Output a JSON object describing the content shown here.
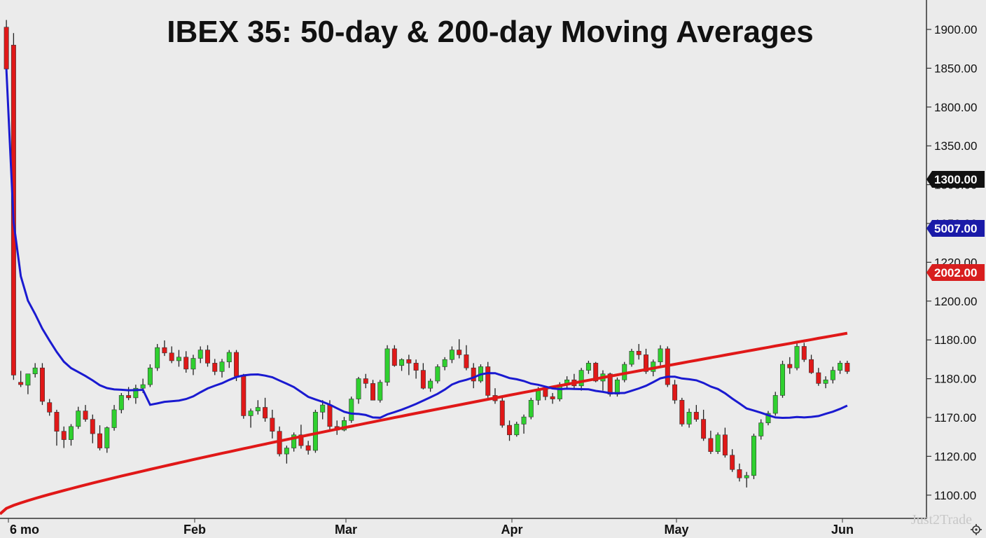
{
  "chart_data": {
    "type": "candlestick",
    "title": "IBEX 35: 50-day & 200-day Moving Averages",
    "y_ticks": [
      "1900.00",
      "1850.00",
      "1800.00",
      "1350.00",
      "1300.00",
      "1250.00",
      "1220.00",
      "1200.00",
      "1180.00",
      "1180.00",
      "1170.00",
      "1120.00",
      "1100.00"
    ],
    "x_labels": [
      "6 mo",
      "Feb",
      "Mar",
      "Apr",
      "May",
      "Jun"
    ],
    "price_tags": [
      {
        "text": "1300.00",
        "bg": "#111111",
        "fg": "#ffffff",
        "level": 1300
      },
      {
        "text": "5007.00",
        "bg": "#1a1aa8",
        "fg": "#ffffff",
        "level": 1256
      },
      {
        "text": "2002.00",
        "bg": "#d81e1e",
        "fg": "#ffffff",
        "level": 1225
      }
    ],
    "series": [
      {
        "name": "50-day MA",
        "color": "#1a1ad0"
      },
      {
        "name": "200-day MA",
        "color": "#e01818"
      }
    ],
    "up_color": "#2fd02f",
    "down_color": "#e01818",
    "candle_ohlc": [
      [
        1880,
        1892,
        1815,
        1810
      ],
      [
        1850,
        1870,
        1290,
        1298
      ],
      [
        1286,
        1305,
        1278,
        1282
      ],
      [
        1281,
        1300,
        1266,
        1300
      ],
      [
        1300,
        1318,
        1294,
        1310
      ],
      [
        1310,
        1318,
        1248,
        1254
      ],
      [
        1252,
        1258,
        1230,
        1236
      ],
      [
        1236,
        1240,
        1180,
        1204
      ],
      [
        1204,
        1212,
        1176,
        1190
      ],
      [
        1190,
        1216,
        1180,
        1212
      ],
      [
        1212,
        1245,
        1208,
        1238
      ],
      [
        1238,
        1248,
        1220,
        1224
      ],
      [
        1224,
        1232,
        1184,
        1200
      ],
      [
        1200,
        1214,
        1172,
        1176
      ],
      [
        1176,
        1212,
        1168,
        1210
      ],
      [
        1210,
        1248,
        1205,
        1240
      ],
      [
        1240,
        1268,
        1234,
        1264
      ],
      [
        1264,
        1278,
        1256,
        1260
      ],
      [
        1260,
        1282,
        1250,
        1276
      ],
      [
        1276,
        1292,
        1268,
        1282
      ],
      [
        1282,
        1316,
        1278,
        1310
      ],
      [
        1310,
        1350,
        1305,
        1344
      ],
      [
        1344,
        1356,
        1330,
        1335
      ],
      [
        1335,
        1346,
        1318,
        1322
      ],
      [
        1322,
        1340,
        1312,
        1328
      ],
      [
        1328,
        1338,
        1302,
        1308
      ],
      [
        1308,
        1332,
        1298,
        1326
      ],
      [
        1326,
        1346,
        1318,
        1340
      ],
      [
        1340,
        1348,
        1312,
        1318
      ],
      [
        1318,
        1325,
        1298,
        1304
      ],
      [
        1304,
        1325,
        1294,
        1320
      ],
      [
        1320,
        1340,
        1310,
        1336
      ],
      [
        1336,
        1340,
        1288,
        1296
      ],
      [
        1296,
        1300,
        1225,
        1230
      ],
      [
        1230,
        1242,
        1210,
        1238
      ],
      [
        1238,
        1256,
        1232,
        1244
      ],
      [
        1244,
        1260,
        1220,
        1226
      ],
      [
        1226,
        1240,
        1192,
        1204
      ],
      [
        1204,
        1212,
        1162,
        1166
      ],
      [
        1166,
        1180,
        1150,
        1176
      ],
      [
        1176,
        1202,
        1170,
        1198
      ],
      [
        1198,
        1215,
        1175,
        1180
      ],
      [
        1180,
        1188,
        1165,
        1172
      ],
      [
        1172,
        1240,
        1168,
        1236
      ],
      [
        1236,
        1256,
        1224,
        1248
      ],
      [
        1248,
        1256,
        1206,
        1212
      ],
      [
        1212,
        1222,
        1198,
        1206
      ],
      [
        1206,
        1228,
        1204,
        1222
      ],
      [
        1222,
        1262,
        1218,
        1258
      ],
      [
        1258,
        1295,
        1250,
        1292
      ],
      [
        1292,
        1300,
        1276,
        1284
      ],
      [
        1284,
        1290,
        1256,
        1256
      ],
      [
        1256,
        1290,
        1252,
        1286
      ],
      [
        1286,
        1348,
        1280,
        1342
      ],
      [
        1342,
        1348,
        1312,
        1314
      ],
      [
        1314,
        1326,
        1305,
        1324
      ],
      [
        1324,
        1332,
        1298,
        1318
      ],
      [
        1318,
        1324,
        1292,
        1306
      ],
      [
        1306,
        1318,
        1274,
        1276
      ],
      [
        1276,
        1292,
        1270,
        1288
      ],
      [
        1288,
        1316,
        1284,
        1312
      ],
      [
        1312,
        1328,
        1306,
        1324
      ],
      [
        1324,
        1346,
        1318,
        1340
      ],
      [
        1340,
        1358,
        1326,
        1332
      ],
      [
        1332,
        1348,
        1306,
        1310
      ],
      [
        1310,
        1318,
        1276,
        1288
      ],
      [
        1288,
        1316,
        1285,
        1312
      ],
      [
        1312,
        1320,
        1260,
        1264
      ],
      [
        1264,
        1276,
        1250,
        1255
      ],
      [
        1255,
        1262,
        1210,
        1214
      ],
      [
        1214,
        1222,
        1188,
        1198
      ],
      [
        1198,
        1220,
        1195,
        1216
      ],
      [
        1216,
        1232,
        1200,
        1228
      ],
      [
        1228,
        1260,
        1224,
        1256
      ],
      [
        1256,
        1278,
        1248,
        1274
      ],
      [
        1274,
        1280,
        1256,
        1262
      ],
      [
        1262,
        1268,
        1250,
        1258
      ],
      [
        1258,
        1286,
        1254,
        1282
      ],
      [
        1282,
        1296,
        1276,
        1290
      ],
      [
        1290,
        1300,
        1276,
        1280
      ],
      [
        1280,
        1310,
        1272,
        1306
      ],
      [
        1306,
        1322,
        1300,
        1318
      ],
      [
        1318,
        1320,
        1286,
        1288
      ],
      [
        1288,
        1306,
        1272,
        1300
      ],
      [
        1300,
        1302,
        1262,
        1266
      ],
      [
        1266,
        1294,
        1262,
        1290
      ],
      [
        1290,
        1320,
        1286,
        1316
      ],
      [
        1316,
        1342,
        1312,
        1338
      ],
      [
        1338,
        1350,
        1324,
        1332
      ],
      [
        1332,
        1342,
        1300,
        1304
      ],
      [
        1304,
        1324,
        1296,
        1320
      ],
      [
        1320,
        1348,
        1314,
        1342
      ],
      [
        1342,
        1346,
        1278,
        1282
      ],
      [
        1282,
        1290,
        1250,
        1256
      ],
      [
        1256,
        1260,
        1212,
        1216
      ],
      [
        1216,
        1242,
        1210,
        1236
      ],
      [
        1236,
        1248,
        1220,
        1224
      ],
      [
        1224,
        1240,
        1188,
        1192
      ],
      [
        1192,
        1205,
        1166,
        1170
      ],
      [
        1170,
        1202,
        1166,
        1198
      ],
      [
        1198,
        1210,
        1160,
        1164
      ],
      [
        1164,
        1174,
        1136,
        1140
      ],
      [
        1140,
        1150,
        1120,
        1126
      ],
      [
        1126,
        1136,
        1110,
        1130
      ],
      [
        1130,
        1200,
        1124,
        1196
      ],
      [
        1196,
        1224,
        1190,
        1218
      ],
      [
        1218,
        1238,
        1214,
        1234
      ],
      [
        1234,
        1270,
        1230,
        1264
      ],
      [
        1264,
        1322,
        1260,
        1316
      ],
      [
        1316,
        1328,
        1300,
        1310
      ],
      [
        1310,
        1352,
        1306,
        1346
      ],
      [
        1346,
        1352,
        1320,
        1324
      ],
      [
        1324,
        1332,
        1300,
        1302
      ],
      [
        1302,
        1310,
        1280,
        1284
      ],
      [
        1284,
        1296,
        1276,
        1290
      ],
      [
        1290,
        1312,
        1284,
        1306
      ],
      [
        1306,
        1322,
        1300,
        1318
      ],
      [
        1318,
        1322,
        1300,
        1304
      ]
    ],
    "grid": false
  },
  "watermark": "Just2Trade",
  "settings_icon": "gear-icon"
}
